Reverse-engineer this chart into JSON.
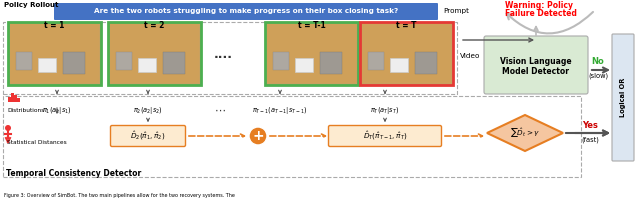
{
  "title": "",
  "figsize": [
    6.4,
    2.04
  ],
  "dpi": 100,
  "bg_color": "#ffffff",
  "prompt_text": "Are the two robots struggling to make progress on their box closing task?",
  "prompt_bg": "#4472c4",
  "prompt_label": "Prompt",
  "video_label": "Video",
  "policy_rollout_label": "Policy Rollout",
  "warning_line1": "Warning: Policy",
  "warning_line2": "Failure Detected",
  "warning_color": "#ff0000",
  "vlm_line1": "Vision Language",
  "vlm_line2": "Model Detector",
  "vlm_bg": "#d9ead3",
  "logical_or_text": "Logical OR",
  "logical_or_bg": "#dce6f1",
  "no_label": "No",
  "yes_label": "Yes",
  "slow_label": "(slow)",
  "fast_label": "(fast)",
  "frame_labels": [
    "t = 1",
    "t = 2",
    "t = T-1",
    "t = T"
  ],
  "frame_green_indices": [
    0,
    1,
    2
  ],
  "frame_red_indices": [
    3
  ],
  "frame_bg": "#c8a060",
  "frame_border_green": "#4caf50",
  "frame_border_red": "#e53935",
  "outer_dashed_border": "#aaaaaa",
  "distributions_label": "Distributions",
  "stat_dist_label": "Statistical Distances",
  "temporal_label": "Temporal Consistency Detector",
  "plus_color": "#e67e22",
  "diamond_bg": "#f5c6a0",
  "diamond_border": "#e67e22",
  "dhat_box_bg": "#fdebd0",
  "dhat_box_border": "#e67e22",
  "arrow_color_dark": "#555555",
  "arrow_color_orange": "#e67e22",
  "dots_color": "#333333",
  "caption": "Figure 3: Overview of SimBot. The two main pipelines allow for the two recovery systems. The"
}
